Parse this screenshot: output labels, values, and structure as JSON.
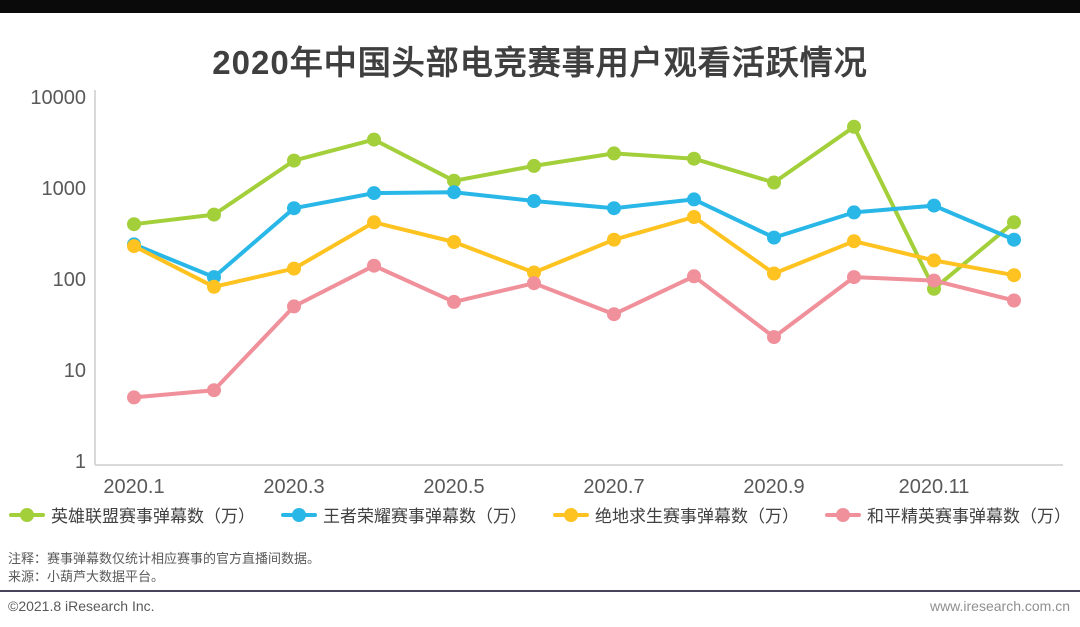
{
  "page": {
    "title": "2020年中国头部电竞赛事用户观看活跃情况",
    "top_bar_color": "#0a0a0a",
    "notes": [
      "注释：赛事弹幕数仅统计相应赛事的官方直播间数据。",
      "来源：小葫芦大数据平台。"
    ],
    "copyright": "©2021.8 iResearch Inc.",
    "website": "www.iresearch.com.cn"
  },
  "chart_data": {
    "type": "line",
    "title": "2020年中国头部电竞赛事用户观看活跃情况",
    "x": [
      "2020.1",
      "2020.2",
      "2020.3",
      "2020.4",
      "2020.5",
      "2020.6",
      "2020.7",
      "2020.8",
      "2020.9",
      "2020.10",
      "2020.11",
      "2020.12"
    ],
    "x_tick_labels": [
      "2020.1",
      "2020.3",
      "2020.5",
      "2020.7",
      "2020.9",
      "2020.11"
    ],
    "x_tick_indices": [
      0,
      2,
      4,
      6,
      8,
      10
    ],
    "y_scale": "log",
    "y_ticks": [
      1,
      10,
      100,
      1000,
      10000
    ],
    "ylim": [
      1,
      10000
    ],
    "grid": false,
    "legend_position": "bottom",
    "axis_color": "#d9d9d9",
    "tick_label_color": "#595959",
    "series": [
      {
        "name": "英雄联盟赛事弹幕数（万）",
        "color": "#a3cf3b",
        "values": [
          400,
          510,
          2000,
          3400,
          1200,
          1750,
          2400,
          2100,
          1150,
          4700,
          78,
          420
        ]
      },
      {
        "name": "王者荣耀赛事弹幕数（万）",
        "color": "#29b7e8",
        "values": [
          240,
          105,
          600,
          880,
          900,
          720,
          600,
          750,
          285,
          540,
          640,
          270
        ]
      },
      {
        "name": "绝地求生赛事弹幕数（万）",
        "color": "#fec321",
        "values": [
          230,
          82,
          130,
          420,
          255,
          118,
          270,
          480,
          115,
          260,
          160,
          110
        ]
      },
      {
        "name": "和平精英赛事弹幕数（万）",
        "color": "#f0909b",
        "values": [
          5,
          6,
          50,
          140,
          56,
          90,
          41,
          107,
          23,
          105,
          96,
          58
        ]
      }
    ]
  }
}
